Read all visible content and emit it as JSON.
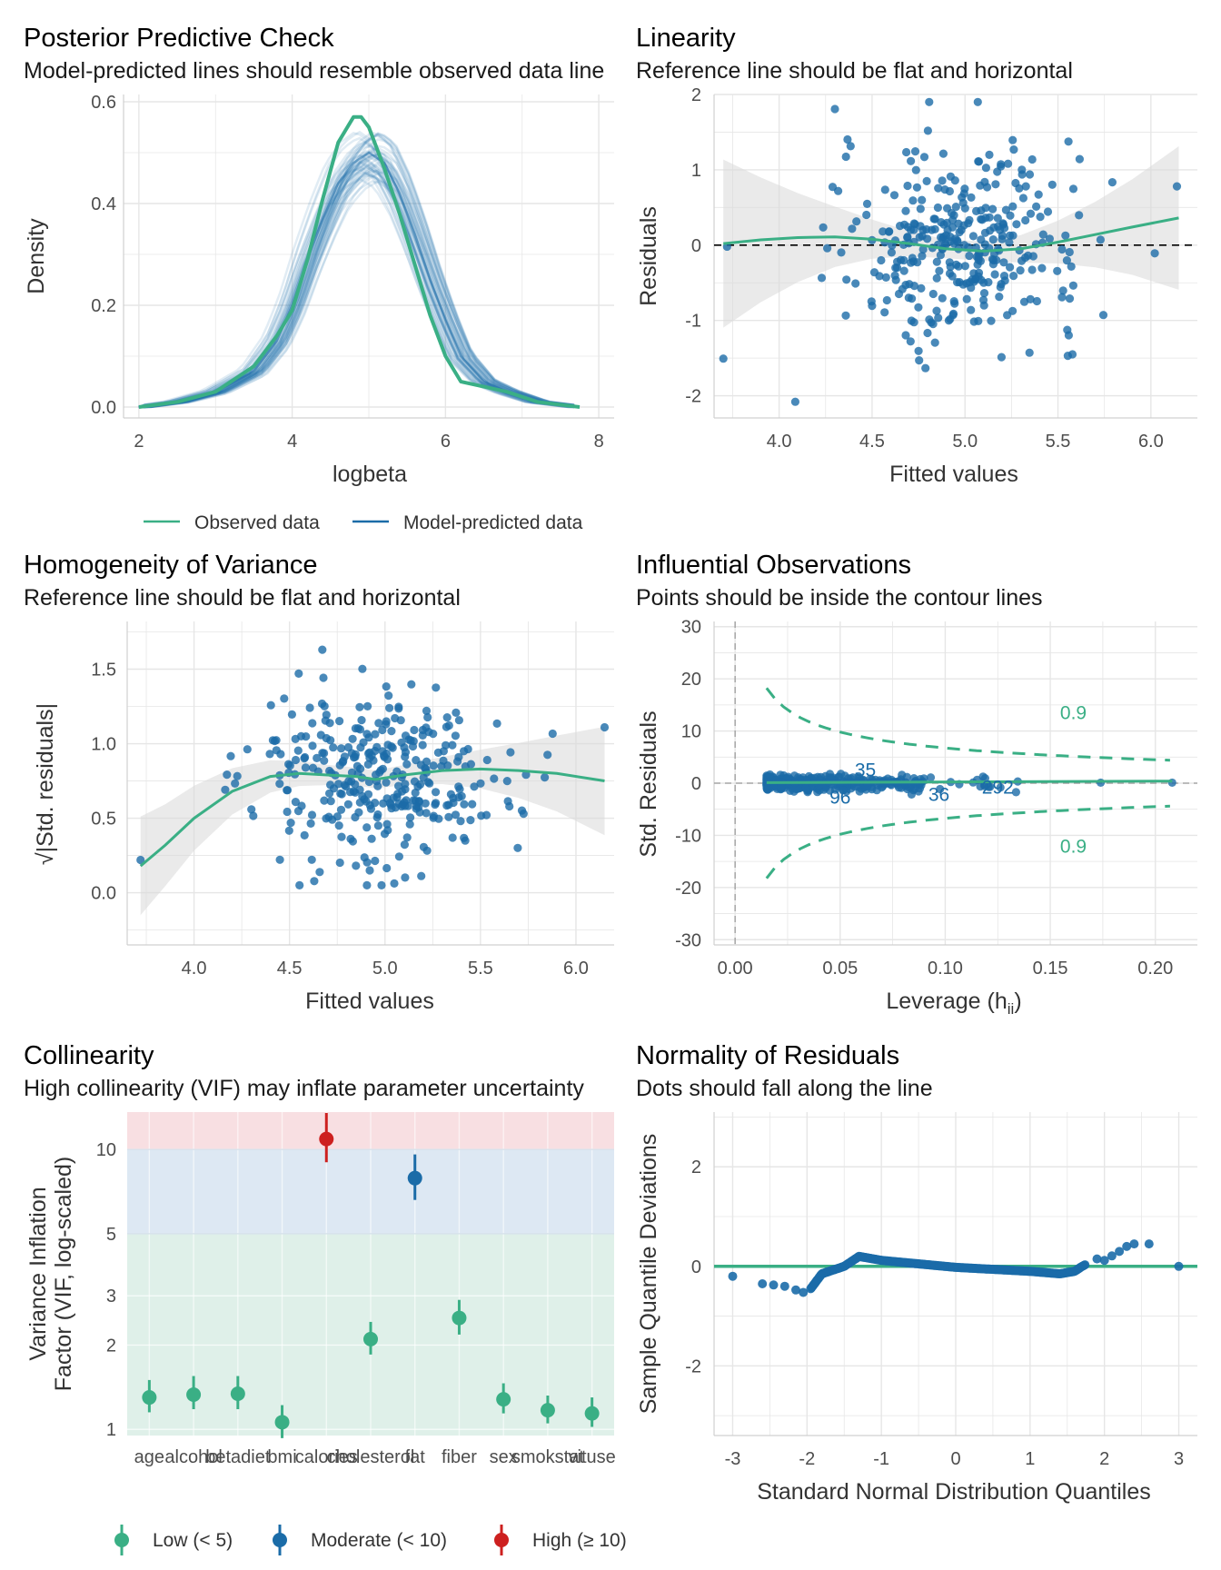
{
  "colors": {
    "green": "#3aaf85",
    "blue": "#1b6ca8",
    "red": "#cd201f",
    "grid": "#e6e6e6",
    "band_low": "#dff0e9",
    "band_moderate": "#dde8f3",
    "band_high": "#f8dfe2",
    "ci_fill": "#d9d9d9"
  },
  "panels": {
    "ppc": {
      "title": "Posterior Predictive Check",
      "subtitle": "Model-predicted lines should resemble observed data line",
      "xlabel": "logbeta",
      "ylabel": "Density",
      "xticks": [
        "2",
        "4",
        "6",
        "8"
      ],
      "yticks": [
        "0.0",
        "0.2",
        "0.4",
        "0.6"
      ],
      "legend": [
        "Observed data",
        "Model-predicted data"
      ]
    },
    "linearity": {
      "title": "Linearity",
      "subtitle": "Reference line should be flat and horizontal",
      "xlabel": "Fitted values",
      "ylabel": "Residuals",
      "xticks": [
        "4.0",
        "4.5",
        "5.0",
        "5.5",
        "6.0"
      ],
      "yticks": [
        "-2",
        "-1",
        "0",
        "1",
        "2"
      ]
    },
    "homogeneity": {
      "title": "Homogeneity of Variance",
      "subtitle": "Reference line should be flat and horizontal",
      "xlabel": "Fitted values",
      "ylabel": "√|Std. residuals|",
      "xticks": [
        "4.0",
        "4.5",
        "5.0",
        "5.5",
        "6.0"
      ],
      "yticks": [
        "0.0",
        "0.5",
        "1.0",
        "1.5"
      ]
    },
    "influential": {
      "title": "Influential Observations",
      "subtitle": "Points should be inside the contour lines",
      "xlabel": "Leverage (h",
      "xlabel_sub": "ii",
      "xlabel_end": ")",
      "ylabel": "Std. Residuals",
      "xticks": [
        "0.00",
        "0.05",
        "0.10",
        "0.15",
        "0.20"
      ],
      "yticks": [
        "-30",
        "-20",
        "-10",
        "0",
        "10",
        "20",
        "30"
      ],
      "contour_labels": [
        "0.9",
        "0.9"
      ],
      "point_labels": [
        "35",
        "96",
        "36",
        "292"
      ]
    },
    "collinearity": {
      "title": "Collinearity",
      "subtitle": "High collinearity (VIF) may inflate parameter uncertainty",
      "ylabel_line1": "Variance Inflation",
      "ylabel_line2": "Factor (VIF, log-scaled)",
      "yticks": [
        "1",
        "2",
        "3",
        "5",
        "10"
      ],
      "legend": [
        "Low (< 5)",
        "Moderate (< 10)",
        "High (≥ 10)"
      ]
    },
    "normality": {
      "title": "Normality of Residuals",
      "subtitle": "Dots should fall along the line",
      "xlabel": "Standard Normal Distribution Quantiles",
      "ylabel": "Sample Quantile Deviations",
      "xticks": [
        "-3",
        "-2",
        "-1",
        "0",
        "1",
        "2",
        "3"
      ],
      "yticks": [
        "-2",
        "0",
        "2"
      ]
    }
  },
  "chart_data": [
    {
      "panel": "Posterior Predictive Check",
      "type": "line",
      "xlim": [
        1.8,
        8.2
      ],
      "ylim": [
        0,
        0.6
      ],
      "series": [
        {
          "name": "Observed data",
          "x": [
            2.0,
            2.5,
            3.0,
            3.5,
            3.8,
            4.0,
            4.2,
            4.4,
            4.6,
            4.8,
            4.9,
            5.0,
            5.2,
            5.4,
            5.6,
            5.8,
            6.0,
            6.2,
            6.5,
            6.8,
            7.2,
            7.75
          ],
          "y": [
            0.0,
            0.01,
            0.03,
            0.08,
            0.14,
            0.19,
            0.29,
            0.41,
            0.52,
            0.57,
            0.57,
            0.55,
            0.47,
            0.38,
            0.28,
            0.18,
            0.1,
            0.05,
            0.04,
            0.03,
            0.01,
            0.0
          ]
        },
        {
          "name": "Model-predicted data",
          "x": [
            2.0,
            2.5,
            3.0,
            3.5,
            3.8,
            4.0,
            4.2,
            4.4,
            4.6,
            4.8,
            5.0,
            5.2,
            5.4,
            5.6,
            5.8,
            6.0,
            6.2,
            6.5,
            6.8,
            7.2,
            7.75
          ],
          "y": [
            0.0,
            0.01,
            0.03,
            0.07,
            0.13,
            0.2,
            0.29,
            0.37,
            0.44,
            0.48,
            0.5,
            0.48,
            0.42,
            0.34,
            0.25,
            0.17,
            0.1,
            0.05,
            0.03,
            0.01,
            0.0
          ]
        }
      ]
    },
    {
      "panel": "Linearity",
      "type": "scatter",
      "xlim": [
        3.65,
        6.25
      ],
      "ylim": [
        -2.15,
        2.0
      ],
      "reference_y": 0,
      "smooth": {
        "x": [
          3.7,
          3.9,
          4.1,
          4.3,
          4.5,
          4.7,
          4.9,
          5.1,
          5.3,
          5.5,
          5.7,
          5.9,
          6.15
        ],
        "y": [
          0.02,
          0.07,
          0.1,
          0.11,
          0.08,
          0.02,
          -0.05,
          -0.08,
          -0.05,
          0.04,
          0.14,
          0.24,
          0.36
        ]
      }
    },
    {
      "panel": "Homogeneity of Variance",
      "type": "scatter",
      "xlim": [
        3.65,
        6.2
      ],
      "ylim": [
        -0.35,
        1.82
      ],
      "smooth": {
        "x": [
          3.72,
          3.85,
          4.0,
          4.2,
          4.4,
          4.55,
          4.7,
          4.85,
          4.95,
          5.1,
          5.3,
          5.5,
          5.7,
          5.9,
          6.15
        ],
        "y": [
          0.18,
          0.32,
          0.5,
          0.68,
          0.78,
          0.8,
          0.79,
          0.78,
          0.76,
          0.79,
          0.82,
          0.83,
          0.82,
          0.8,
          0.75
        ]
      }
    },
    {
      "panel": "Influential Observations",
      "type": "scatter",
      "xlim": [
        -0.01,
        0.22
      ],
      "ylim": [
        -31,
        31
      ],
      "labeled_points": [
        {
          "label": "35",
          "x": 0.062,
          "y": 2.5
        },
        {
          "label": "96",
          "x": 0.05,
          "y": -2.7
        },
        {
          "label": "36",
          "x": 0.097,
          "y": -2.2
        },
        {
          "label": "292",
          "x": 0.125,
          "y": -0.8
        }
      ]
    },
    {
      "panel": "Collinearity",
      "type": "scatter",
      "categories": [
        "age",
        "alcohol",
        "betadiet",
        "bmi",
        "calories",
        "cholesterol",
        "fat",
        "fiber",
        "sex",
        "smokstat",
        "vituse"
      ],
      "values": [
        1.3,
        1.33,
        1.34,
        1.06,
        10.9,
        2.1,
        7.9,
        2.5,
        1.28,
        1.17,
        1.14
      ],
      "ci_low": [
        1.15,
        1.18,
        1.18,
        0.93,
        9.0,
        1.85,
        6.6,
        2.18,
        1.14,
        1.05,
        1.02
      ],
      "ci_high": [
        1.5,
        1.55,
        1.55,
        1.22,
        13.5,
        2.42,
        9.6,
        2.9,
        1.46,
        1.32,
        1.3
      ],
      "groups": [
        "low",
        "low",
        "low",
        "low",
        "high",
        "low",
        "moderate",
        "low",
        "low",
        "low",
        "low"
      ],
      "bands": [
        {
          "name": "Low (< 5)",
          "from": 0.85,
          "to": 5
        },
        {
          "name": "Moderate (< 10)",
          "from": 5,
          "to": 10
        },
        {
          "name": "High (≥ 10)",
          "from": 10,
          "to": 14
        }
      ],
      "log_scale": true
    },
    {
      "panel": "Normality of Residuals",
      "type": "scatter",
      "xlim": [
        -3.25,
        3.25
      ],
      "ylim": [
        -3.4,
        3.1
      ],
      "reference_y": 0
    }
  ]
}
